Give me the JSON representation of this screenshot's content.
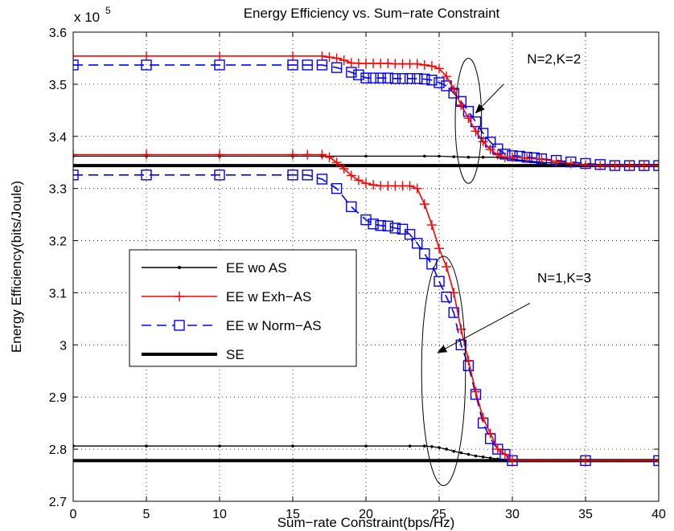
{
  "chart_data": {
    "type": "line",
    "title": "Energy Efficiency vs. Sum−rate Constraint",
    "xlabel": "Sum−rate Constraint(bps/Hz)",
    "ylabel": "Energy Efficiency(bits/Joule)",
    "y_multiplier": {
      "base": "x 10",
      "exponent": "5"
    },
    "xlim": [
      0,
      40
    ],
    "ylim": [
      2.7,
      3.6
    ],
    "x_ticks": [
      "0",
      "5",
      "10",
      "15",
      "20",
      "25",
      "30",
      "35",
      "40"
    ],
    "y_ticks": [
      "2.7",
      "2.8",
      "2.9",
      "3",
      "3.1",
      "3.2",
      "3.3",
      "3.4",
      "3.5",
      "3.6"
    ],
    "grid": true,
    "legend_position": "center-left",
    "legend": [
      {
        "label": "EE wo AS",
        "color": "#000000",
        "style": "dot"
      },
      {
        "label": "EE w Exh−AS",
        "color": "#ff0000",
        "style": "plus"
      },
      {
        "label": "EE w Norm−AS",
        "color": "#0000ff",
        "style": "square-dashed"
      },
      {
        "label": "SE",
        "color": "#000000",
        "style": "thick"
      }
    ],
    "annotations": [
      {
        "text": "N=2,K=2",
        "ellipse_center": [
          27,
          3.43
        ],
        "ellipse_radii": [
          0.9,
          0.12
        ],
        "arrow_from": [
          29.4,
          3.5
        ],
        "arrow_to": [
          27.5,
          3.445
        ],
        "label_at": [
          31,
          3.54
        ]
      },
      {
        "text": "N=1,K=3",
        "ellipse_center": [
          25.3,
          2.95
        ],
        "ellipse_radii": [
          1.5,
          0.22
        ],
        "arrow_from": [
          31.2,
          3.08
        ],
        "arrow_to": [
          24.9,
          2.985
        ],
        "label_at": [
          31.7,
          3.12
        ]
      }
    ],
    "groups": [
      {
        "label": "N=2,K=2",
        "series": [
          {
            "kind": "ee_wo_as",
            "x": [
              0,
              5,
              10,
              15,
              17,
              20,
              24,
              25,
              26,
              27,
              28,
              29,
              30,
              32,
              35,
              40
            ],
            "y": [
              3.362,
              3.362,
              3.362,
              3.362,
              3.362,
              3.362,
              3.362,
              3.362,
              3.361,
              3.36,
              3.36,
              3.36,
              3.356,
              3.35,
              3.346,
              3.344
            ]
          },
          {
            "kind": "ee_w_exh_as",
            "x": [
              0,
              5,
              10,
              15,
              17,
              17.5,
              18,
              18.5,
              19,
              19.5,
              20,
              20.5,
              21,
              21.5,
              22,
              22.5,
              23,
              23.5,
              24,
              24.5,
              25,
              25.5,
              26,
              26.5,
              27,
              27.5,
              28,
              28.5,
              29,
              29.5,
              30,
              31,
              32,
              33,
              34,
              35,
              36,
              37,
              38,
              39,
              40
            ],
            "y": [
              3.554,
              3.554,
              3.554,
              3.554,
              3.554,
              3.552,
              3.55,
              3.546,
              3.541,
              3.54,
              3.54,
              3.54,
              3.54,
              3.54,
              3.539,
              3.539,
              3.539,
              3.539,
              3.537,
              3.535,
              3.53,
              3.515,
              3.49,
              3.46,
              3.435,
              3.41,
              3.39,
              3.375,
              3.365,
              3.36,
              3.36,
              3.358,
              3.356,
              3.352,
              3.348,
              3.345,
              3.344,
              3.344,
              3.344,
              3.344,
              3.344
            ]
          },
          {
            "kind": "ee_w_norm_as",
            "x": [
              0,
              5,
              10,
              15,
              16,
              17,
              18,
              19,
              19.5,
              20,
              20.5,
              21,
              21.5,
              22,
              22.5,
              23,
              23.5,
              24,
              24.5,
              25,
              25.5,
              26,
              26.5,
              27,
              27.5,
              28,
              28.5,
              29,
              29.5,
              30,
              30.5,
              31,
              31.5,
              32,
              33,
              34,
              35,
              36,
              37,
              38,
              39,
              40
            ],
            "y": [
              3.537,
              3.537,
              3.537,
              3.537,
              3.537,
              3.537,
              3.532,
              3.523,
              3.518,
              3.512,
              3.512,
              3.512,
              3.512,
              3.511,
              3.511,
              3.511,
              3.511,
              3.51,
              3.508,
              3.503,
              3.497,
              3.483,
              3.467,
              3.448,
              3.428,
              3.406,
              3.389,
              3.376,
              3.366,
              3.363,
              3.362,
              3.36,
              3.359,
              3.357,
              3.354,
              3.351,
              3.348,
              3.346,
              3.344,
              3.344,
              3.344,
              3.344
            ]
          },
          {
            "kind": "se",
            "x": [
              0,
              40
            ],
            "y": [
              3.344,
              3.344
            ]
          }
        ]
      },
      {
        "label": "N=1,K=3",
        "series": [
          {
            "kind": "ee_wo_as",
            "x": [
              0,
              5,
              10,
              15,
              20,
              23,
              24,
              24.5,
              25,
              25.5,
              26,
              26.5,
              27,
              27.5,
              28,
              28.5,
              29,
              29.5,
              30,
              35,
              40
            ],
            "y": [
              2.806,
              2.806,
              2.806,
              2.806,
              2.806,
              2.806,
              2.806,
              2.805,
              2.803,
              2.8,
              2.796,
              2.793,
              2.79,
              2.787,
              2.785,
              2.783,
              2.781,
              2.779,
              2.778,
              2.778,
              2.778
            ]
          },
          {
            "kind": "ee_w_exh_as",
            "x": [
              0,
              5,
              10,
              15,
              16,
              17,
              17.5,
              18,
              18.5,
              19,
              19.5,
              20,
              20.5,
              21,
              21.5,
              22,
              22.5,
              23,
              23.5,
              24,
              24.5,
              25,
              25.5,
              26,
              26.5,
              27,
              27.5,
              28,
              28.5,
              29,
              29.5,
              30,
              35,
              40
            ],
            "y": [
              3.365,
              3.365,
              3.365,
              3.365,
              3.365,
              3.365,
              3.36,
              3.35,
              3.338,
              3.325,
              3.316,
              3.31,
              3.307,
              3.305,
              3.305,
              3.305,
              3.305,
              3.305,
              3.3,
              3.27,
              3.23,
              3.185,
              3.15,
              3.1,
              3.03,
              2.97,
              2.91,
              2.86,
              2.83,
              2.8,
              2.79,
              2.778,
              2.778,
              2.778
            ]
          },
          {
            "kind": "ee_w_norm_as",
            "x": [
              0,
              5,
              10,
              15,
              16,
              17,
              18,
              19,
              20,
              20.5,
              21,
              21.5,
              22,
              22.5,
              23,
              23.5,
              24,
              24.5,
              25,
              25.5,
              26,
              26.5,
              27,
              27.5,
              28,
              28.5,
              29,
              29.5,
              30,
              35,
              40
            ],
            "y": [
              3.326,
              3.326,
              3.326,
              3.326,
              3.326,
              3.318,
              3.3,
              3.265,
              3.24,
              3.232,
              3.229,
              3.228,
              3.224,
              3.222,
              3.212,
              3.195,
              3.175,
              3.155,
              3.122,
              3.092,
              3.062,
              3.0,
              2.96,
              2.905,
              2.85,
              2.82,
              2.8,
              2.79,
              2.778,
              2.778,
              2.778
            ]
          },
          {
            "kind": "se",
            "x": [
              0,
              40
            ],
            "y": [
              2.778,
              2.778
            ]
          }
        ]
      }
    ]
  }
}
